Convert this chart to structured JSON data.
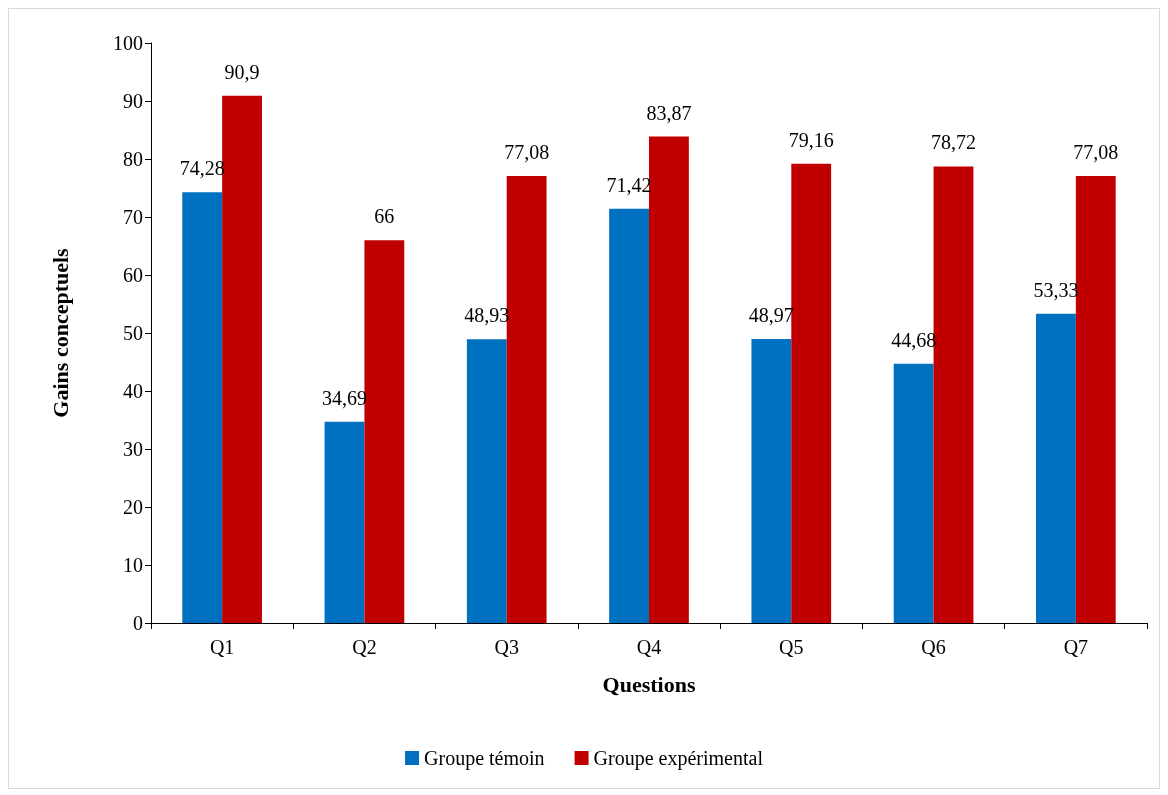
{
  "chart_data": {
    "type": "bar",
    "xlabel": "Questions",
    "ylabel": "Gains conceptuels",
    "categories": [
      "Q1",
      "Q2",
      "Q3",
      "Q4",
      "Q5",
      "Q6",
      "Q7"
    ],
    "series": [
      {
        "name": "Groupe témoin",
        "color": "#0070c0",
        "values": [
          74.28,
          34.69,
          48.93,
          71.42,
          48.97,
          44.68,
          53.33
        ],
        "value_labels": [
          "74,28",
          "34,69",
          "48,93",
          "71,42",
          "48,97",
          "44,68",
          "53,33"
        ]
      },
      {
        "name": "Groupe expérimental",
        "color": "#c00000",
        "values": [
          90.9,
          66,
          77.08,
          83.87,
          79.16,
          78.72,
          77.08
        ],
        "value_labels": [
          "90,9",
          "66",
          "77,08",
          "83,87",
          "79,16",
          "78,72",
          "77,08"
        ]
      }
    ],
    "ylim": [
      0,
      100
    ],
    "yticks": [
      0,
      10,
      20,
      30,
      40,
      50,
      60,
      70,
      80,
      90,
      100
    ],
    "grid": false,
    "legend": "bottom"
  }
}
